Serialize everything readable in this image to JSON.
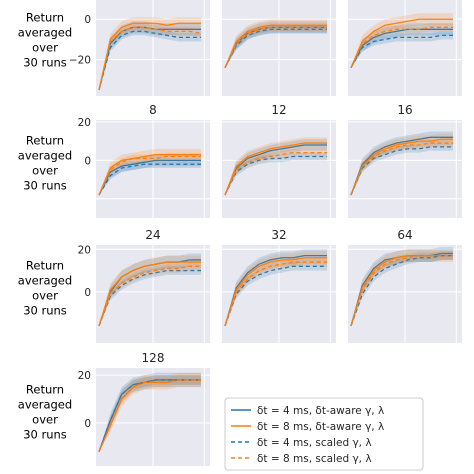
{
  "colors": {
    "panel_bg": "#e8e8f0",
    "grid": "#ffffff",
    "blue": "#1f77b4",
    "orange": "#ff7f0e"
  },
  "legend": [
    {
      "label": "δt = 4 ms, δt-aware γ, λ",
      "color": "#1f77b4",
      "style": "solid"
    },
    {
      "label": "δt = 8 ms, δt-aware γ, λ",
      "color": "#ff7f0e",
      "style": "solid"
    },
    {
      "label": "δt = 4 ms, scaled γ, λ",
      "color": "#1f77b4",
      "style": "dashed"
    },
    {
      "label": "δt = 8 ms, scaled γ, λ",
      "color": "#ff7f0e",
      "style": "dashed"
    }
  ],
  "ylabel_lines": [
    "Return",
    "averaged",
    "over",
    "30 runs"
  ],
  "chart_data": {
    "type": "line",
    "grid": true,
    "legend_position": "bottom-center",
    "panels": [
      {
        "title": "",
        "ylim": [
          -38,
          11
        ],
        "yticks": [
          "−20",
          "0"
        ],
        "series": {
          "aware4": [
            -35,
            -12,
            -6,
            -4,
            -4,
            -5,
            -5,
            -5,
            -5,
            -5
          ],
          "aware8": [
            -35,
            -10,
            -4,
            -2,
            -2,
            -2,
            -3,
            -2,
            -2,
            -2
          ],
          "scaled4": [
            -35,
            -14,
            -8,
            -6,
            -6,
            -7,
            -8,
            -9,
            -9,
            -9
          ],
          "scaled8": [
            -35,
            -11,
            -6,
            -4,
            -4,
            -5,
            -6,
            -6,
            -6,
            -7
          ]
        }
      },
      {
        "title": "",
        "ylim": [
          -38,
          11
        ],
        "yticks": [],
        "series": {
          "aware4": [
            -24,
            -12,
            -7,
            -5,
            -4,
            -4,
            -4,
            -4,
            -4,
            -4
          ],
          "aware8": [
            -24,
            -11,
            -6,
            -4,
            -3,
            -3,
            -3,
            -3,
            -3,
            -3
          ],
          "scaled4": [
            -24,
            -13,
            -8,
            -6,
            -5,
            -5,
            -5,
            -5,
            -5,
            -5
          ],
          "scaled8": [
            -24,
            -12,
            -7,
            -5,
            -4,
            -4,
            -4,
            -4,
            -4,
            -4
          ]
        }
      },
      {
        "title": "",
        "ylim": [
          -38,
          11
        ],
        "yticks": [],
        "series": {
          "aware4": [
            -24,
            -13,
            -9,
            -7,
            -6,
            -5,
            -5,
            -5,
            -5,
            -5
          ],
          "aware8": [
            -24,
            -11,
            -6,
            -3,
            -2,
            -1,
            0,
            0,
            0,
            0
          ],
          "scaled4": [
            -24,
            -14,
            -11,
            -10,
            -9,
            -9,
            -9,
            -9,
            -8,
            -8
          ],
          "scaled8": [
            -24,
            -12,
            -8,
            -6,
            -5,
            -5,
            -5,
            -4,
            -4,
            -4
          ]
        }
      },
      {
        "title": "8",
        "ylim": [
          -30,
          21
        ],
        "yticks": [
          "0",
          "20"
        ],
        "series": {
          "aware4": [
            -18,
            -6,
            -3,
            -2,
            -1,
            0,
            0,
            0,
            0,
            0
          ],
          "aware8": [
            -18,
            -4,
            0,
            1,
            2,
            3,
            3,
            3,
            3,
            3
          ],
          "scaled4": [
            -18,
            -8,
            -4,
            -3,
            -2,
            -2,
            -2,
            -2,
            -2,
            -2
          ],
          "scaled8": [
            -18,
            -5,
            -1,
            1,
            1,
            1,
            2,
            2,
            2,
            2
          ]
        }
      },
      {
        "title": "12",
        "ylim": [
          -30,
          21
        ],
        "yticks": [],
        "series": {
          "aware4": [
            -18,
            -4,
            1,
            3,
            5,
            6,
            7,
            8,
            8,
            8
          ],
          "aware8": [
            -18,
            -3,
            2,
            4,
            6,
            7,
            8,
            9,
            9,
            9
          ],
          "scaled4": [
            -18,
            -6,
            -2,
            0,
            1,
            1,
            2,
            2,
            2,
            2
          ],
          "scaled8": [
            -18,
            -5,
            -1,
            1,
            2,
            3,
            4,
            4,
            4,
            4
          ]
        }
      },
      {
        "title": "16",
        "ylim": [
          -30,
          21
        ],
        "yticks": [],
        "series": {
          "aware4": [
            -18,
            -2,
            4,
            7,
            9,
            10,
            11,
            12,
            12,
            12
          ],
          "aware8": [
            -18,
            -3,
            3,
            6,
            8,
            9,
            10,
            10,
            11,
            11
          ],
          "scaled4": [
            -18,
            -4,
            1,
            3,
            5,
            6,
            6,
            7,
            7,
            7
          ],
          "scaled8": [
            -18,
            -3,
            2,
            5,
            7,
            8,
            8,
            9,
            9,
            9
          ]
        }
      },
      {
        "title": "24",
        "ylim": [
          -24,
          22
        ],
        "yticks": [
          "0",
          "20"
        ],
        "series": {
          "aware4": [
            -16,
            0,
            7,
            10,
            12,
            13,
            14,
            14,
            15,
            15
          ],
          "aware8": [
            -16,
            1,
            7,
            10,
            12,
            13,
            14,
            14,
            14,
            14
          ],
          "scaled4": [
            -16,
            -2,
            3,
            6,
            8,
            9,
            10,
            10,
            10,
            10
          ],
          "scaled8": [
            -16,
            -1,
            4,
            7,
            9,
            10,
            11,
            11,
            12,
            12
          ]
        }
      },
      {
        "title": "32",
        "ylim": [
          -24,
          22
        ],
        "yticks": [],
        "series": {
          "aware4": [
            -16,
            2,
            9,
            13,
            15,
            16,
            16,
            17,
            17,
            17
          ],
          "aware8": [
            -16,
            1,
            8,
            12,
            14,
            15,
            15,
            16,
            16,
            16
          ],
          "scaled4": [
            -16,
            -1,
            5,
            8,
            10,
            11,
            12,
            12,
            12,
            12
          ],
          "scaled8": [
            -16,
            0,
            6,
            10,
            12,
            13,
            14,
            14,
            14,
            14
          ]
        }
      },
      {
        "title": "64",
        "ylim": [
          -24,
          22
        ],
        "yticks": [],
        "series": {
          "aware4": [
            -16,
            3,
            11,
            15,
            16,
            17,
            17,
            17,
            18,
            18
          ],
          "aware8": [
            -16,
            2,
            10,
            14,
            16,
            17,
            17,
            17,
            17,
            17
          ],
          "scaled4": [
            -16,
            -1,
            7,
            11,
            13,
            15,
            16,
            16,
            17,
            17
          ],
          "scaled8": [
            -16,
            1,
            9,
            13,
            15,
            16,
            17,
            17,
            17,
            17
          ]
        }
      },
      {
        "title": "128",
        "ylim": [
          -18,
          23
        ],
        "yticks": [
          "0",
          "20"
        ],
        "series": {
          "aware4": [
            -12,
            1,
            12,
            16,
            17,
            18,
            18,
            18,
            18,
            18
          ],
          "aware8": [
            -12,
            -1,
            10,
            15,
            17,
            17,
            17,
            18,
            18,
            18
          ],
          "scaled4": [
            -12,
            1,
            12,
            16,
            17,
            18,
            18,
            18,
            18,
            18
          ],
          "scaled8": [
            -12,
            -1,
            10,
            15,
            17,
            17,
            17,
            18,
            18,
            18
          ]
        }
      }
    ]
  }
}
